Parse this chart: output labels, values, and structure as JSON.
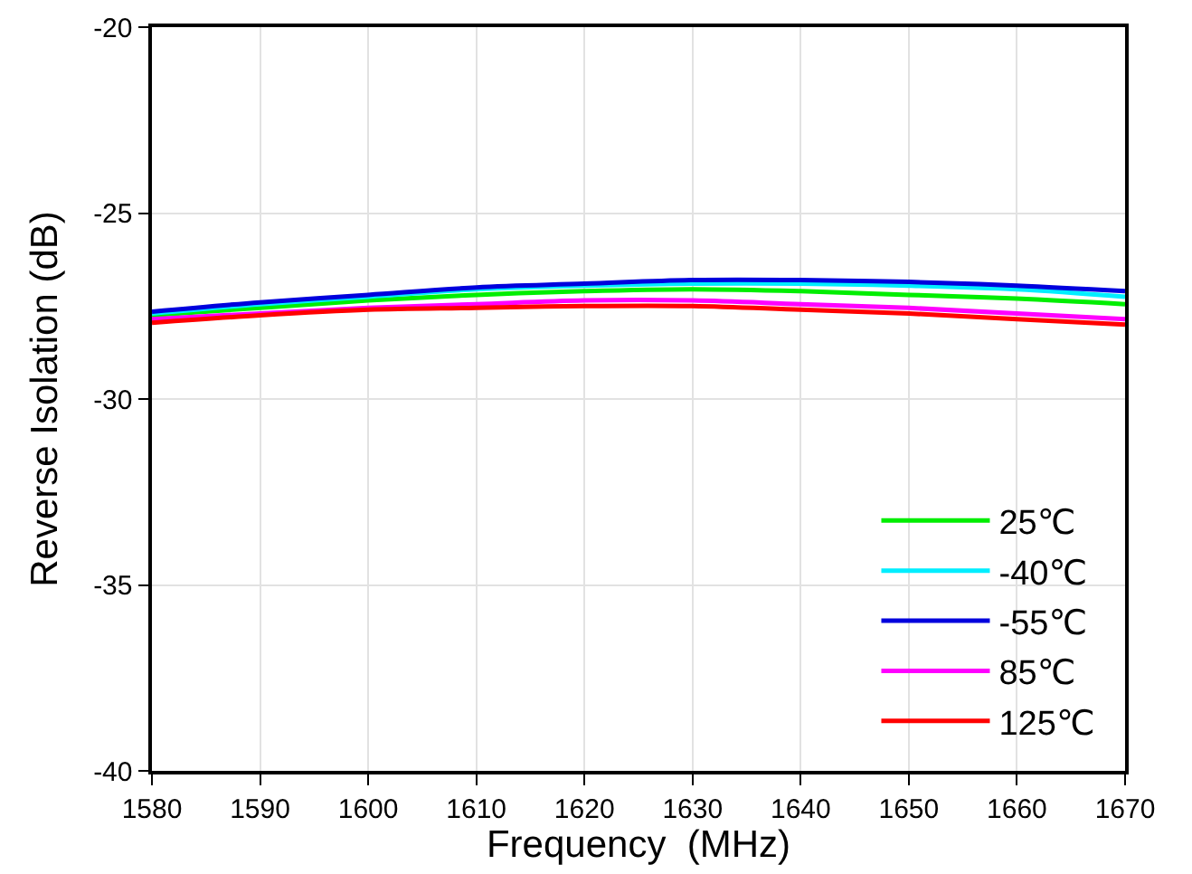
{
  "chart_data": {
    "type": "line",
    "xlabel": "Frequency  (MHz)",
    "ylabel": "Reverse Isolation (dB)",
    "x": [
      1580,
      1590,
      1600,
      1610,
      1620,
      1630,
      1640,
      1650,
      1660,
      1670
    ],
    "series": [
      {
        "name": "25℃",
        "color": "#00ee00",
        "values": [
          -27.75,
          -27.55,
          -27.35,
          -27.2,
          -27.1,
          -27.05,
          -27.1,
          -27.2,
          -27.3,
          -27.45
        ]
      },
      {
        "name": "-40℃",
        "color": "#00eeff",
        "values": [
          -27.7,
          -27.45,
          -27.25,
          -27.05,
          -26.95,
          -26.9,
          -26.9,
          -26.95,
          -27.05,
          -27.25
        ]
      },
      {
        "name": "-55℃",
        "color": "#0000dd",
        "values": [
          -27.65,
          -27.4,
          -27.2,
          -27.0,
          -26.9,
          -26.8,
          -26.8,
          -26.85,
          -26.95,
          -27.1
        ]
      },
      {
        "name": "85℃",
        "color": "#ff00ff",
        "values": [
          -27.85,
          -27.7,
          -27.55,
          -27.45,
          -27.35,
          -27.35,
          -27.45,
          -27.55,
          -27.7,
          -27.85
        ]
      },
      {
        "name": "125℃",
        "color": "#ff0000",
        "values": [
          -27.95,
          -27.75,
          -27.6,
          -27.55,
          -27.5,
          -27.5,
          -27.6,
          -27.7,
          -27.85,
          -28.0
        ]
      }
    ],
    "xlim": [
      1580,
      1670
    ],
    "xticks": [
      1580,
      1590,
      1600,
      1610,
      1620,
      1630,
      1640,
      1650,
      1660,
      1670
    ],
    "ylim": [
      -40,
      -20
    ],
    "yticks": [
      -40,
      -35,
      -30,
      -25,
      -20
    ],
    "grid": true,
    "legend": "bottom right",
    "marker": "none",
    "line_style": "solid"
  }
}
